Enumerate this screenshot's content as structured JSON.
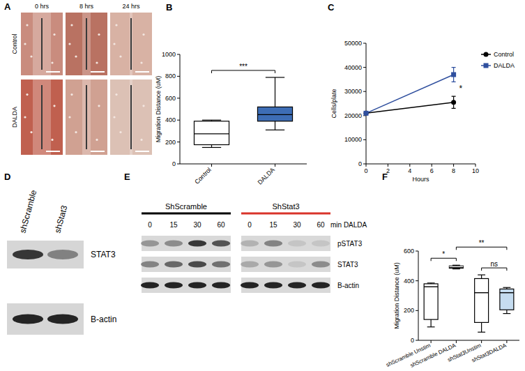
{
  "chart_data": [
    {
      "type": "box",
      "title": "B",
      "y_label": "Migration  Distance (uM)",
      "categories": [
        "Control",
        "DALDA"
      ],
      "min": [
        150,
        310
      ],
      "q1": [
        175,
        390
      ],
      "median": [
        275,
        450
      ],
      "q3": [
        390,
        520
      ],
      "max": [
        400,
        790
      ],
      "colors": [
        "#ffffff",
        "#3d6db5"
      ],
      "ylim": [
        0,
        1000
      ],
      "yticks": [
        0,
        200,
        400,
        600,
        800,
        1000
      ],
      "annotations": [
        {
          "text": "***",
          "between": [
            0,
            1
          ]
        }
      ]
    },
    {
      "type": "line",
      "title": "C",
      "x_label": "Hours",
      "y_label": "Cells/plate",
      "x": [
        0,
        8
      ],
      "series": [
        {
          "name": "Control",
          "color": "#000000",
          "values": [
            21000,
            25500
          ],
          "error": [
            0,
            2500
          ],
          "marker": "circle"
        },
        {
          "name": "DALDA",
          "color": "#2f4f9e",
          "values": [
            21000,
            37000
          ],
          "error": [
            0,
            3000
          ],
          "marker": "square"
        }
      ],
      "xlim": [
        0,
        10
      ],
      "xticks": [
        0,
        2,
        4,
        6,
        8,
        10
      ],
      "ylim": [
        0,
        50000
      ],
      "yticks": [
        0,
        10000,
        20000,
        30000,
        40000,
        50000
      ],
      "legend": "right",
      "annotations": [
        {
          "text": "*",
          "x": 8
        }
      ]
    },
    {
      "type": "box",
      "title": "F",
      "y_label": "Migration Distance (uM)",
      "categories": [
        "shScramble Unstim",
        "shScramble DALDA",
        "shStat3Unstim",
        "shStat3DALDA"
      ],
      "min": [
        90,
        480,
        55,
        180
      ],
      "q1": [
        140,
        485,
        120,
        205
      ],
      "median": [
        360,
        495,
        320,
        320
      ],
      "q3": [
        380,
        500,
        415,
        345
      ],
      "max": [
        385,
        505,
        440,
        355
      ],
      "colors": [
        "#ffffff",
        "#111111",
        "#ffffff",
        "#c5dcf0"
      ],
      "ylim": [
        0,
        600
      ],
      "yticks": [
        0,
        200,
        400,
        600
      ],
      "annotations": [
        {
          "text": "*",
          "between": [
            0,
            1
          ]
        },
        {
          "text": "**",
          "between": [
            1,
            3
          ]
        },
        {
          "text": "ns",
          "between": [
            2,
            3
          ]
        }
      ]
    }
  ],
  "panel_a": {
    "title": "A",
    "columns": [
      "0 hrs",
      "8 hrs",
      "24 hrs"
    ],
    "rows": [
      "Control",
      "DALDA"
    ]
  },
  "panel_d": {
    "title": "D",
    "lanes": [
      "shScramble",
      "shStat3"
    ],
    "rows": [
      "STAT3",
      "B-actin"
    ]
  },
  "panel_e": {
    "title": "E",
    "groups": [
      "ShScramble",
      "ShStat3"
    ],
    "time_points": [
      0,
      15,
      30,
      60
    ],
    "time_unit": "min DALDA",
    "rows": [
      "pSTAT3",
      "STAT3",
      "B-actin"
    ]
  }
}
